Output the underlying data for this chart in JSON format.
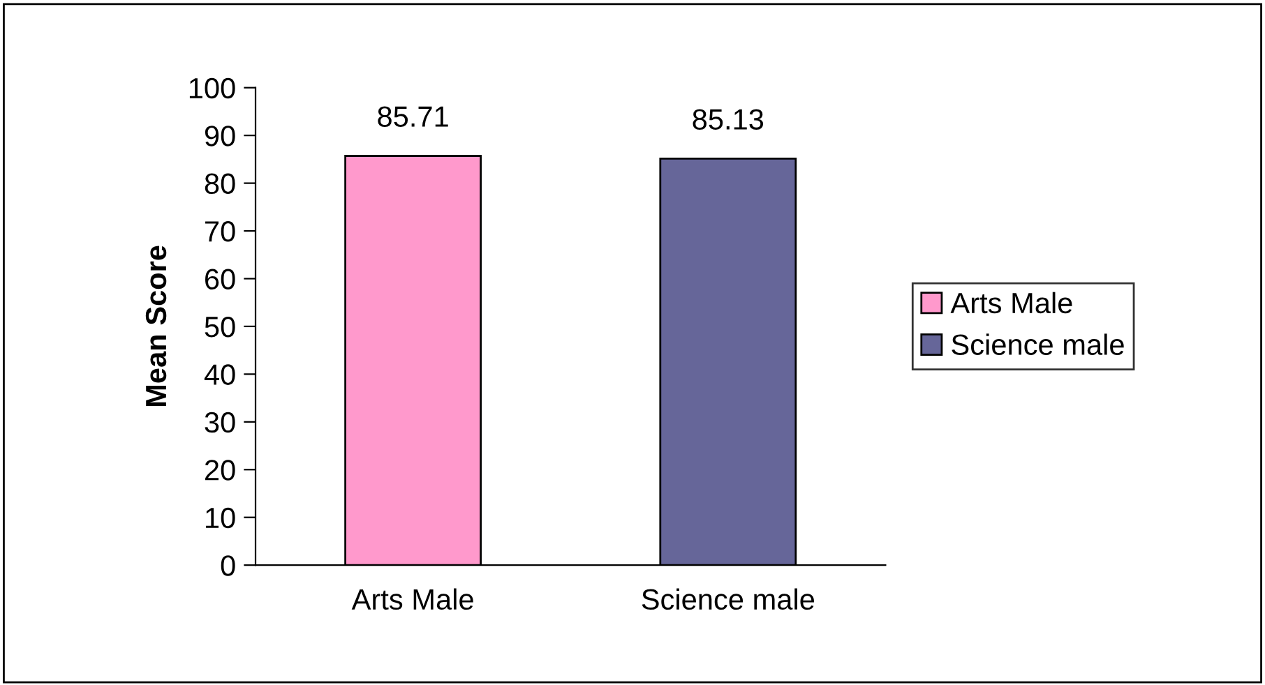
{
  "chart_data": {
    "type": "bar",
    "ylabel": "Mean Score",
    "categories": [
      "Arts Male",
      "Science male"
    ],
    "series": [
      {
        "name": "Arts Male",
        "color": "#ff99cc",
        "values": [
          85.71,
          null
        ]
      },
      {
        "name": "Science male",
        "color": "#666699",
        "values": [
          null,
          85.13
        ]
      }
    ],
    "ylim": [
      0,
      100
    ],
    "yticks": [
      0,
      10,
      20,
      30,
      40,
      50,
      60,
      70,
      80,
      90,
      100
    ],
    "data_labels": true,
    "grid": false,
    "legend": "right"
  }
}
